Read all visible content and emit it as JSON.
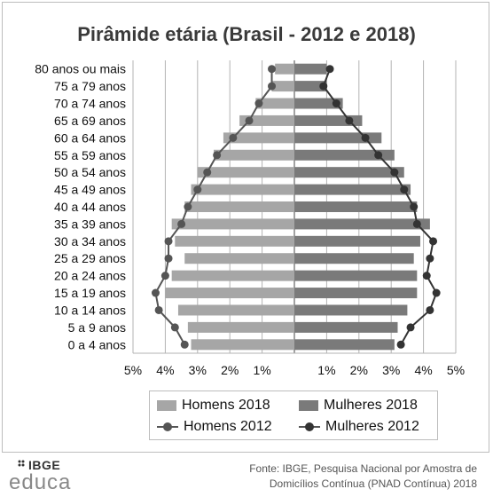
{
  "chart_data": {
    "type": "bar",
    "title": "Pirâmide etária (Brasil - 2012 e 2018)",
    "categories": [
      "80 anos ou mais",
      "75 a 79 anos",
      "70 a 74 anos",
      "65 a 69 anos",
      "60 a 64 anos",
      "55 a 59 anos",
      "50 a 54 anos",
      "45 a 49 anos",
      "40 a 44 anos",
      "35 a 39 anos",
      "30 a 34 anos",
      "25 a 29 anos",
      "20 a 24 anos",
      "15 a 19 anos",
      "10 a 14 anos",
      "5 a 9 anos",
      "0 a 4 anos"
    ],
    "xticks": [
      "5%",
      "4%",
      "3%",
      "2%",
      "1%",
      "1%",
      "2%",
      "3%",
      "4%",
      "5%"
    ],
    "xlim": [
      -5,
      5
    ],
    "series": [
      {
        "name": "Homens 2018",
        "kind": "bar",
        "color": "#a6a6a6",
        "values": [
          0.6,
          0.7,
          1.2,
          1.7,
          2.2,
          2.5,
          3.0,
          3.2,
          3.4,
          3.8,
          3.7,
          3.4,
          3.8,
          4.0,
          3.6,
          3.3,
          3.2
        ]
      },
      {
        "name": "Mulheres 2018",
        "kind": "bar",
        "color": "#7a7a7a",
        "values": [
          1.0,
          1.0,
          1.5,
          2.1,
          2.7,
          3.1,
          3.4,
          3.6,
          3.8,
          4.2,
          3.9,
          3.7,
          3.8,
          3.8,
          3.5,
          3.2,
          3.1
        ]
      },
      {
        "name": "Homens 2012",
        "kind": "line",
        "color": "#555555",
        "values": [
          0.7,
          0.7,
          1.1,
          1.4,
          1.9,
          2.4,
          2.7,
          3.0,
          3.3,
          3.5,
          3.9,
          3.9,
          4.0,
          4.3,
          4.2,
          3.7,
          3.4
        ]
      },
      {
        "name": "Mulheres 2012",
        "kind": "line",
        "color": "#333333",
        "values": [
          1.1,
          0.9,
          1.3,
          1.7,
          2.2,
          2.6,
          3.1,
          3.4,
          3.7,
          3.8,
          4.3,
          4.2,
          4.1,
          4.4,
          4.2,
          3.6,
          3.3
        ]
      }
    ],
    "legend_position": "bottom",
    "grid": true
  },
  "legend": {
    "h2018": "Homens 2018",
    "m2018": "Mulheres 2018",
    "h2012": "Homens 2012",
    "m2012": "Mulheres 2012"
  },
  "logo": {
    "brand": "IBGE",
    "sub": "educa"
  },
  "source": {
    "line1": "Fonte: IBGE, Pesquisa Nacional por Amostra de",
    "line2": "Domicílios Contínua (PNAD Contínua) 2018"
  }
}
